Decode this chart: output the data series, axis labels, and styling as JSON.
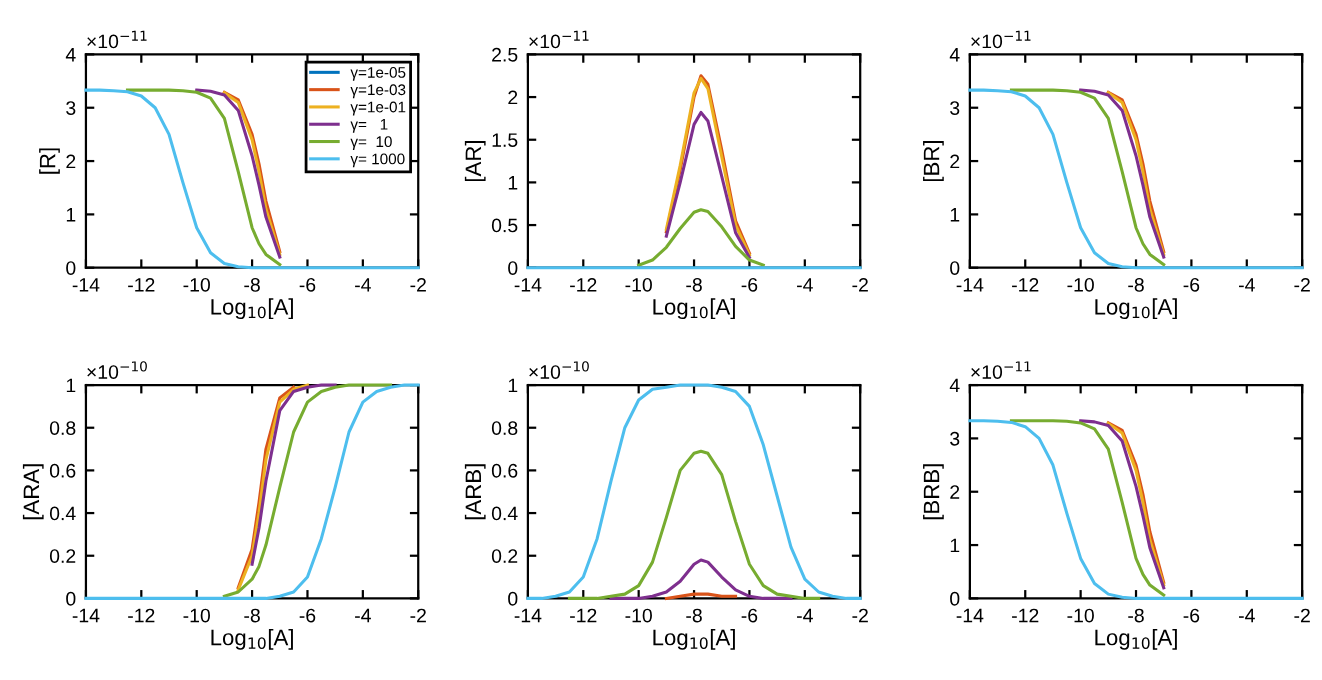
{
  "chart_data": [
    {
      "type": "line",
      "ylabel": "[R]",
      "xlabel": "Log$_{10}$[A]",
      "annotations": [
        "×10$^{−11}$"
      ],
      "legend": "top right",
      "grid": false,
      "x": [
        -14,
        -13.5,
        -13,
        -12.5,
        -12,
        -11.5,
        -11,
        -10.5,
        -10,
        -9.5,
        -9,
        -8.5,
        -8,
        -7.75,
        -7.5,
        -7,
        -6.5,
        -6,
        -5.5,
        -5,
        -4.5,
        -4,
        -3.5,
        -3,
        -2.5,
        -2
      ],
      "xlim": [
        -14,
        -2
      ],
      "xticks": [
        -14,
        -12,
        -10,
        -8,
        -6,
        -4,
        -2
      ],
      "ylim": [
        0,
        4
      ],
      "yticks": [
        0,
        1,
        2,
        3,
        4
      ],
      "series": [
        {
          "name": "γ=1e-05",
          "color": "#0072bd",
          "values": [
            null,
            null,
            null,
            null,
            null,
            null,
            null,
            null,
            null,
            null,
            null,
            null,
            null,
            null,
            null,
            null,
            null,
            null,
            null,
            null,
            null,
            null,
            null,
            null,
            null,
            null
          ]
        },
        {
          "name": "γ=1e-03",
          "color": "#d95319",
          "values": [
            null,
            null,
            null,
            null,
            null,
            null,
            null,
            null,
            null,
            null,
            3.29,
            3.15,
            2.5,
            1.95,
            1.25,
            0.3,
            null,
            null,
            null,
            null,
            null,
            null,
            null,
            null,
            null,
            null
          ]
        },
        {
          "name": "γ=1e-01",
          "color": "#edb120",
          "values": [
            null,
            null,
            null,
            null,
            null,
            null,
            null,
            null,
            null,
            null,
            3.28,
            3.1,
            2.4,
            1.8,
            1.1,
            0.25,
            null,
            null,
            null,
            null,
            null,
            null,
            null,
            null,
            null,
            null
          ]
        },
        {
          "name": "γ=   1",
          "color": "#7e2f8e",
          "values": [
            null,
            null,
            null,
            null,
            null,
            null,
            null,
            null,
            3.33,
            3.31,
            3.24,
            2.95,
            2.1,
            1.55,
            0.95,
            0.2,
            null,
            null,
            null,
            null,
            null,
            null,
            null,
            null,
            null,
            null
          ]
        },
        {
          "name": "γ=  10",
          "color": "#77ac30",
          "values": [
            null,
            null,
            null,
            3.33,
            3.33,
            3.33,
            3.33,
            3.32,
            3.29,
            3.18,
            2.8,
            1.8,
            0.75,
            0.45,
            0.25,
            0.06,
            null,
            null,
            null,
            null,
            null,
            null,
            null,
            null,
            null,
            null
          ]
        },
        {
          "name": "γ= 1000",
          "color": "#4dbeee",
          "values": [
            3.33,
            3.33,
            3.32,
            3.3,
            3.22,
            3.0,
            2.5,
            1.6,
            0.75,
            0.28,
            0.08,
            0.02,
            0,
            0,
            0,
            0,
            0,
            0,
            0,
            0,
            0,
            0,
            0,
            0,
            0,
            0
          ]
        }
      ]
    },
    {
      "type": "line",
      "ylabel": "[AR]",
      "xlabel": "Log$_{10}$[A]",
      "annotations": [
        "×10$^{−11}$"
      ],
      "grid": false,
      "x": [
        -14,
        -13.5,
        -13,
        -12.5,
        -12,
        -11.5,
        -11,
        -10.5,
        -10,
        -9.5,
        -9,
        -8.5,
        -8,
        -7.75,
        -7.5,
        -7,
        -6.5,
        -6,
        -5.5,
        -5,
        -4.5,
        -4,
        -3.5,
        -3,
        -2.5,
        -2
      ],
      "xlim": [
        -14,
        -2
      ],
      "xticks": [
        -14,
        -12,
        -10,
        -8,
        -6,
        -4,
        -2
      ],
      "ylim": [
        0,
        2.5
      ],
      "yticks": [
        0,
        0.5,
        1,
        1.5,
        2,
        2.5
      ],
      "series": [
        {
          "color": "#0072bd",
          "values": [
            null,
            null,
            null,
            null,
            null,
            null,
            null,
            null,
            null,
            null,
            null,
            null,
            null,
            null,
            null,
            null,
            null,
            null,
            null,
            null,
            null,
            null,
            null,
            null,
            null,
            null
          ]
        },
        {
          "color": "#d95319",
          "values": [
            null,
            null,
            null,
            null,
            null,
            null,
            null,
            null,
            null,
            null,
            0.42,
            1.15,
            2.0,
            2.25,
            2.15,
            1.38,
            0.55,
            0.17,
            null,
            null,
            null,
            null,
            null,
            null,
            null,
            null
          ]
        },
        {
          "color": "#edb120",
          "values": [
            null,
            null,
            null,
            null,
            null,
            null,
            null,
            null,
            null,
            null,
            0.45,
            1.2,
            2.05,
            2.22,
            2.1,
            1.3,
            0.5,
            0.15,
            null,
            null,
            null,
            null,
            null,
            null,
            null,
            null
          ]
        },
        {
          "color": "#7e2f8e",
          "values": [
            null,
            null,
            null,
            null,
            null,
            null,
            null,
            null,
            null,
            null,
            0.37,
            1.0,
            1.68,
            1.82,
            1.72,
            1.07,
            0.41,
            0.12,
            null,
            null,
            null,
            null,
            null,
            null,
            null,
            null
          ]
        },
        {
          "color": "#77ac30",
          "values": [
            null,
            null,
            null,
            null,
            null,
            null,
            null,
            null,
            0.03,
            0.09,
            0.24,
            0.46,
            0.65,
            0.68,
            0.66,
            0.48,
            0.25,
            0.09,
            0.03,
            null,
            null,
            null,
            null,
            null,
            null,
            null
          ]
        },
        {
          "color": "#4dbeee",
          "values": [
            0,
            0,
            0,
            0,
            0,
            0,
            0,
            0,
            0,
            0,
            0,
            0,
            0,
            0,
            0,
            0,
            0,
            0,
            0,
            0,
            0,
            0,
            0,
            0,
            0,
            0
          ]
        }
      ]
    },
    {
      "type": "line",
      "ylabel": "[BR]",
      "xlabel": "Log$_{10}$[A]",
      "annotations": [
        "×10$^{−11}$"
      ],
      "grid": false,
      "x": [
        -14,
        -13.5,
        -13,
        -12.5,
        -12,
        -11.5,
        -11,
        -10.5,
        -10,
        -9.5,
        -9,
        -8.5,
        -8,
        -7.75,
        -7.5,
        -7,
        -6.5,
        -6,
        -5.5,
        -5,
        -4.5,
        -4,
        -3.5,
        -3,
        -2.5,
        -2
      ],
      "xlim": [
        -14,
        -2
      ],
      "xticks": [
        -14,
        -12,
        -10,
        -8,
        -6,
        -4,
        -2
      ],
      "ylim": [
        0,
        4
      ],
      "yticks": [
        0,
        1,
        2,
        3,
        4
      ],
      "series": [
        {
          "color": "#0072bd",
          "values": [
            null,
            null,
            null,
            null,
            null,
            null,
            null,
            null,
            null,
            null,
            null,
            null,
            null,
            null,
            null,
            null,
            null,
            null,
            null,
            null,
            null,
            null,
            null,
            null,
            null,
            null
          ]
        },
        {
          "color": "#d95319",
          "values": [
            null,
            null,
            null,
            null,
            null,
            null,
            null,
            null,
            null,
            null,
            3.29,
            3.15,
            2.5,
            1.95,
            1.25,
            0.3,
            null,
            null,
            null,
            null,
            null,
            null,
            null,
            null,
            null,
            null
          ]
        },
        {
          "color": "#edb120",
          "values": [
            null,
            null,
            null,
            null,
            null,
            null,
            null,
            null,
            null,
            null,
            3.28,
            3.1,
            2.4,
            1.8,
            1.1,
            0.25,
            null,
            null,
            null,
            null,
            null,
            null,
            null,
            null,
            null,
            null
          ]
        },
        {
          "color": "#7e2f8e",
          "values": [
            null,
            null,
            null,
            null,
            null,
            null,
            null,
            null,
            3.33,
            3.31,
            3.24,
            2.95,
            2.1,
            1.55,
            0.95,
            0.2,
            null,
            null,
            null,
            null,
            null,
            null,
            null,
            null,
            null,
            null
          ]
        },
        {
          "color": "#77ac30",
          "values": [
            null,
            null,
            null,
            3.33,
            3.33,
            3.33,
            3.33,
            3.32,
            3.29,
            3.18,
            2.8,
            1.8,
            0.75,
            0.45,
            0.25,
            0.06,
            null,
            null,
            null,
            null,
            null,
            null,
            null,
            null,
            null,
            null
          ]
        },
        {
          "color": "#4dbeee",
          "values": [
            3.33,
            3.33,
            3.32,
            3.3,
            3.22,
            3.0,
            2.5,
            1.6,
            0.75,
            0.28,
            0.08,
            0.02,
            0,
            0,
            0,
            0,
            0,
            0,
            0,
            0,
            0,
            0,
            0,
            0,
            0,
            0
          ]
        }
      ]
    },
    {
      "type": "line",
      "ylabel": "[ARA]",
      "xlabel": "Log$_{10}$[A]",
      "annotations": [
        "×10$^{−10}$"
      ],
      "grid": false,
      "x": [
        -14,
        -13.5,
        -13,
        -12.5,
        -12,
        -11.5,
        -11,
        -10.5,
        -10,
        -9.5,
        -9,
        -8.5,
        -8,
        -7.75,
        -7.5,
        -7,
        -6.5,
        -6,
        -5.5,
        -5,
        -4.5,
        -4,
        -3.5,
        -3,
        -2.5,
        -2
      ],
      "xlim": [
        -14,
        -2
      ],
      "xticks": [
        -14,
        -12,
        -10,
        -8,
        -6,
        -4,
        -2
      ],
      "ylim": [
        0,
        1
      ],
      "yticks": [
        0,
        0.2,
        0.4,
        0.6,
        0.8,
        1
      ],
      "series": [
        {
          "color": "#0072bd",
          "values": [
            null,
            null,
            null,
            null,
            null,
            null,
            null,
            null,
            null,
            null,
            null,
            null,
            null,
            null,
            null,
            null,
            null,
            null,
            null,
            null,
            null,
            null,
            null,
            null,
            null,
            null
          ]
        },
        {
          "color": "#d95319",
          "values": [
            null,
            null,
            null,
            null,
            null,
            null,
            null,
            null,
            null,
            null,
            null,
            0.05,
            0.23,
            0.45,
            0.7,
            0.94,
            0.99,
            null,
            null,
            null,
            null,
            null,
            null,
            null,
            null,
            null
          ]
        },
        {
          "color": "#edb120",
          "values": [
            null,
            null,
            null,
            null,
            null,
            null,
            null,
            null,
            null,
            null,
            null,
            0.04,
            0.2,
            0.4,
            0.65,
            0.92,
            0.98,
            1,
            null,
            null,
            null,
            null,
            null,
            null,
            null,
            null
          ]
        },
        {
          "color": "#7e2f8e",
          "values": [
            null,
            null,
            null,
            null,
            null,
            null,
            null,
            null,
            null,
            null,
            null,
            null,
            0.16,
            0.33,
            0.55,
            0.88,
            0.97,
            0.99,
            1,
            1,
            null,
            null,
            null,
            null,
            null,
            null
          ]
        },
        {
          "color": "#77ac30",
          "values": [
            null,
            null,
            null,
            null,
            null,
            null,
            null,
            null,
            null,
            null,
            0.01,
            0.03,
            0.09,
            0.15,
            0.25,
            0.52,
            0.78,
            0.92,
            0.97,
            0.99,
            1,
            1,
            1,
            1,
            null,
            null
          ]
        },
        {
          "color": "#4dbeee",
          "values": [
            0,
            0,
            0,
            0,
            0,
            0,
            0,
            0,
            0,
            0,
            0,
            0,
            0,
            0,
            0,
            0.01,
            0.03,
            0.1,
            0.28,
            0.52,
            0.78,
            0.92,
            0.97,
            0.99,
            1,
            1
          ]
        }
      ]
    },
    {
      "type": "line",
      "ylabel": "[ARB]",
      "xlabel": "Log$_{10}$[A]",
      "annotations": [
        "×10$^{−10}$"
      ],
      "grid": false,
      "x": [
        -14,
        -13.5,
        -13,
        -12.5,
        -12,
        -11.5,
        -11,
        -10.5,
        -10,
        -9.5,
        -9,
        -8.5,
        -8,
        -7.75,
        -7.5,
        -7,
        -6.5,
        -6,
        -5.5,
        -5,
        -4.5,
        -4,
        -3.5,
        -3,
        -2.5,
        -2
      ],
      "xlim": [
        -14,
        -2
      ],
      "xticks": [
        -14,
        -12,
        -10,
        -8,
        -6,
        -4,
        -2
      ],
      "ylim": [
        0,
        1
      ],
      "yticks": [
        0,
        0.2,
        0.4,
        0.6,
        0.8,
        1
      ],
      "series": [
        {
          "color": "#0072bd",
          "values": [
            null,
            null,
            null,
            null,
            null,
            null,
            null,
            null,
            null,
            null,
            null,
            null,
            null,
            null,
            null,
            null,
            null,
            null,
            null,
            null,
            null,
            null,
            null,
            null,
            null,
            null
          ]
        },
        {
          "color": "#d95319",
          "values": [
            null,
            null,
            null,
            null,
            null,
            null,
            null,
            null,
            null,
            null,
            0,
            0.01,
            0.02,
            0.02,
            0.02,
            0.01,
            0.01,
            null,
            null,
            null,
            null,
            null,
            null,
            null,
            null,
            null
          ]
        },
        {
          "color": "#edb120",
          "values": [
            null,
            null,
            null,
            null,
            null,
            null,
            null,
            null,
            null,
            null,
            null,
            null,
            null,
            null,
            null,
            null,
            null,
            null,
            null,
            null,
            null,
            null,
            null,
            null,
            null,
            null
          ]
        },
        {
          "color": "#7e2f8e",
          "values": [
            null,
            null,
            null,
            null,
            null,
            null,
            0,
            0,
            0,
            0.01,
            0.03,
            0.08,
            0.16,
            0.18,
            0.17,
            0.1,
            0.04,
            0.01,
            0,
            0,
            0,
            null,
            null,
            null,
            null,
            null
          ]
        },
        {
          "color": "#77ac30",
          "values": [
            null,
            null,
            null,
            0,
            0,
            0,
            0.01,
            0.02,
            0.06,
            0.17,
            0.38,
            0.6,
            0.68,
            0.69,
            0.68,
            0.58,
            0.36,
            0.16,
            0.06,
            0.02,
            0.01,
            0,
            0,
            null,
            null,
            null
          ]
        },
        {
          "color": "#4dbeee",
          "values": [
            0,
            0,
            0.01,
            0.03,
            0.1,
            0.28,
            0.55,
            0.8,
            0.93,
            0.98,
            0.99,
            1,
            1,
            1,
            1,
            0.99,
            0.97,
            0.9,
            0.72,
            0.48,
            0.24,
            0.09,
            0.03,
            0.01,
            0,
            0
          ]
        }
      ]
    },
    {
      "type": "line",
      "ylabel": "[BRB]",
      "xlabel": "Log$_{10}$[A]",
      "annotations": [
        "×10$^{−11}$"
      ],
      "grid": false,
      "x": [
        -14,
        -13.5,
        -13,
        -12.5,
        -12,
        -11.5,
        -11,
        -10.5,
        -10,
        -9.5,
        -9,
        -8.5,
        -8,
        -7.75,
        -7.5,
        -7,
        -6.5,
        -6,
        -5.5,
        -5,
        -4.5,
        -4,
        -3.5,
        -3,
        -2.5,
        -2
      ],
      "xlim": [
        -14,
        -2
      ],
      "xticks": [
        -14,
        -12,
        -10,
        -8,
        -6,
        -4,
        -2
      ],
      "ylim": [
        0,
        4
      ],
      "yticks": [
        0,
        1,
        2,
        3,
        4
      ],
      "series": [
        {
          "color": "#0072bd",
          "values": [
            null,
            null,
            null,
            null,
            null,
            null,
            null,
            null,
            null,
            null,
            null,
            null,
            null,
            null,
            null,
            null,
            null,
            null,
            null,
            null,
            null,
            null,
            null,
            null,
            null,
            null
          ]
        },
        {
          "color": "#d95319",
          "values": [
            null,
            null,
            null,
            null,
            null,
            null,
            null,
            null,
            null,
            null,
            3.29,
            3.15,
            2.5,
            1.95,
            1.25,
            0.3,
            null,
            null,
            null,
            null,
            null,
            null,
            null,
            null,
            null,
            null
          ]
        },
        {
          "color": "#edb120",
          "values": [
            null,
            null,
            null,
            null,
            null,
            null,
            null,
            null,
            null,
            null,
            3.28,
            3.1,
            2.4,
            1.8,
            1.1,
            0.25,
            null,
            null,
            null,
            null,
            null,
            null,
            null,
            null,
            null,
            null
          ]
        },
        {
          "color": "#7e2f8e",
          "values": [
            null,
            null,
            null,
            null,
            null,
            null,
            null,
            null,
            3.33,
            3.31,
            3.24,
            2.95,
            2.1,
            1.55,
            0.95,
            0.2,
            null,
            null,
            null,
            null,
            null,
            null,
            null,
            null,
            null,
            null
          ]
        },
        {
          "color": "#77ac30",
          "values": [
            null,
            null,
            null,
            3.33,
            3.33,
            3.33,
            3.33,
            3.32,
            3.29,
            3.18,
            2.8,
            1.8,
            0.75,
            0.45,
            0.25,
            0.06,
            null,
            null,
            null,
            null,
            null,
            null,
            null,
            null,
            null,
            null
          ]
        },
        {
          "color": "#4dbeee",
          "values": [
            3.33,
            3.33,
            3.32,
            3.3,
            3.22,
            3.0,
            2.5,
            1.6,
            0.75,
            0.28,
            0.08,
            0.02,
            0,
            0,
            0,
            0,
            0,
            0,
            0,
            0,
            0,
            0,
            0,
            0,
            0,
            0
          ]
        }
      ]
    }
  ]
}
